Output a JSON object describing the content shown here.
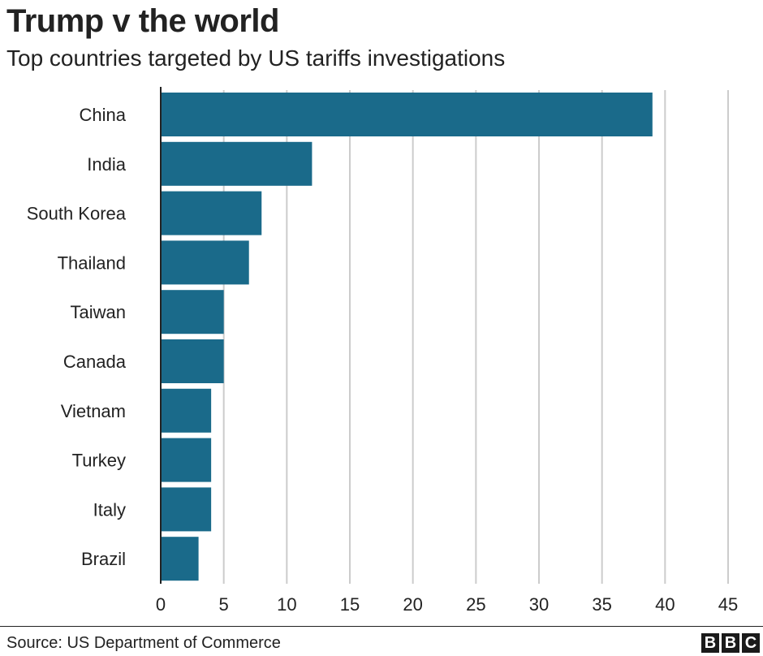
{
  "header": {
    "title": "Trump v the world",
    "subtitle": "Top countries targeted by US tariffs investigations"
  },
  "footer": {
    "source": "Source: US Department of Commerce",
    "logo_letters": [
      "B",
      "B",
      "C"
    ]
  },
  "colors": {
    "bar": "#1a6a8a",
    "grid": "#cccccc",
    "axis": "#222222"
  },
  "chart_data": {
    "type": "bar",
    "orientation": "horizontal",
    "categories": [
      "China",
      "India",
      "South Korea",
      "Thailand",
      "Taiwan",
      "Canada",
      "Vietnam",
      "Turkey",
      "Italy",
      "Brazil"
    ],
    "values": [
      39,
      12,
      8,
      7,
      5,
      5,
      4,
      4,
      4,
      3
    ],
    "xlim": [
      0,
      45
    ],
    "xticks": [
      0,
      5,
      10,
      15,
      20,
      25,
      30,
      35,
      40,
      45
    ],
    "grid": true
  }
}
